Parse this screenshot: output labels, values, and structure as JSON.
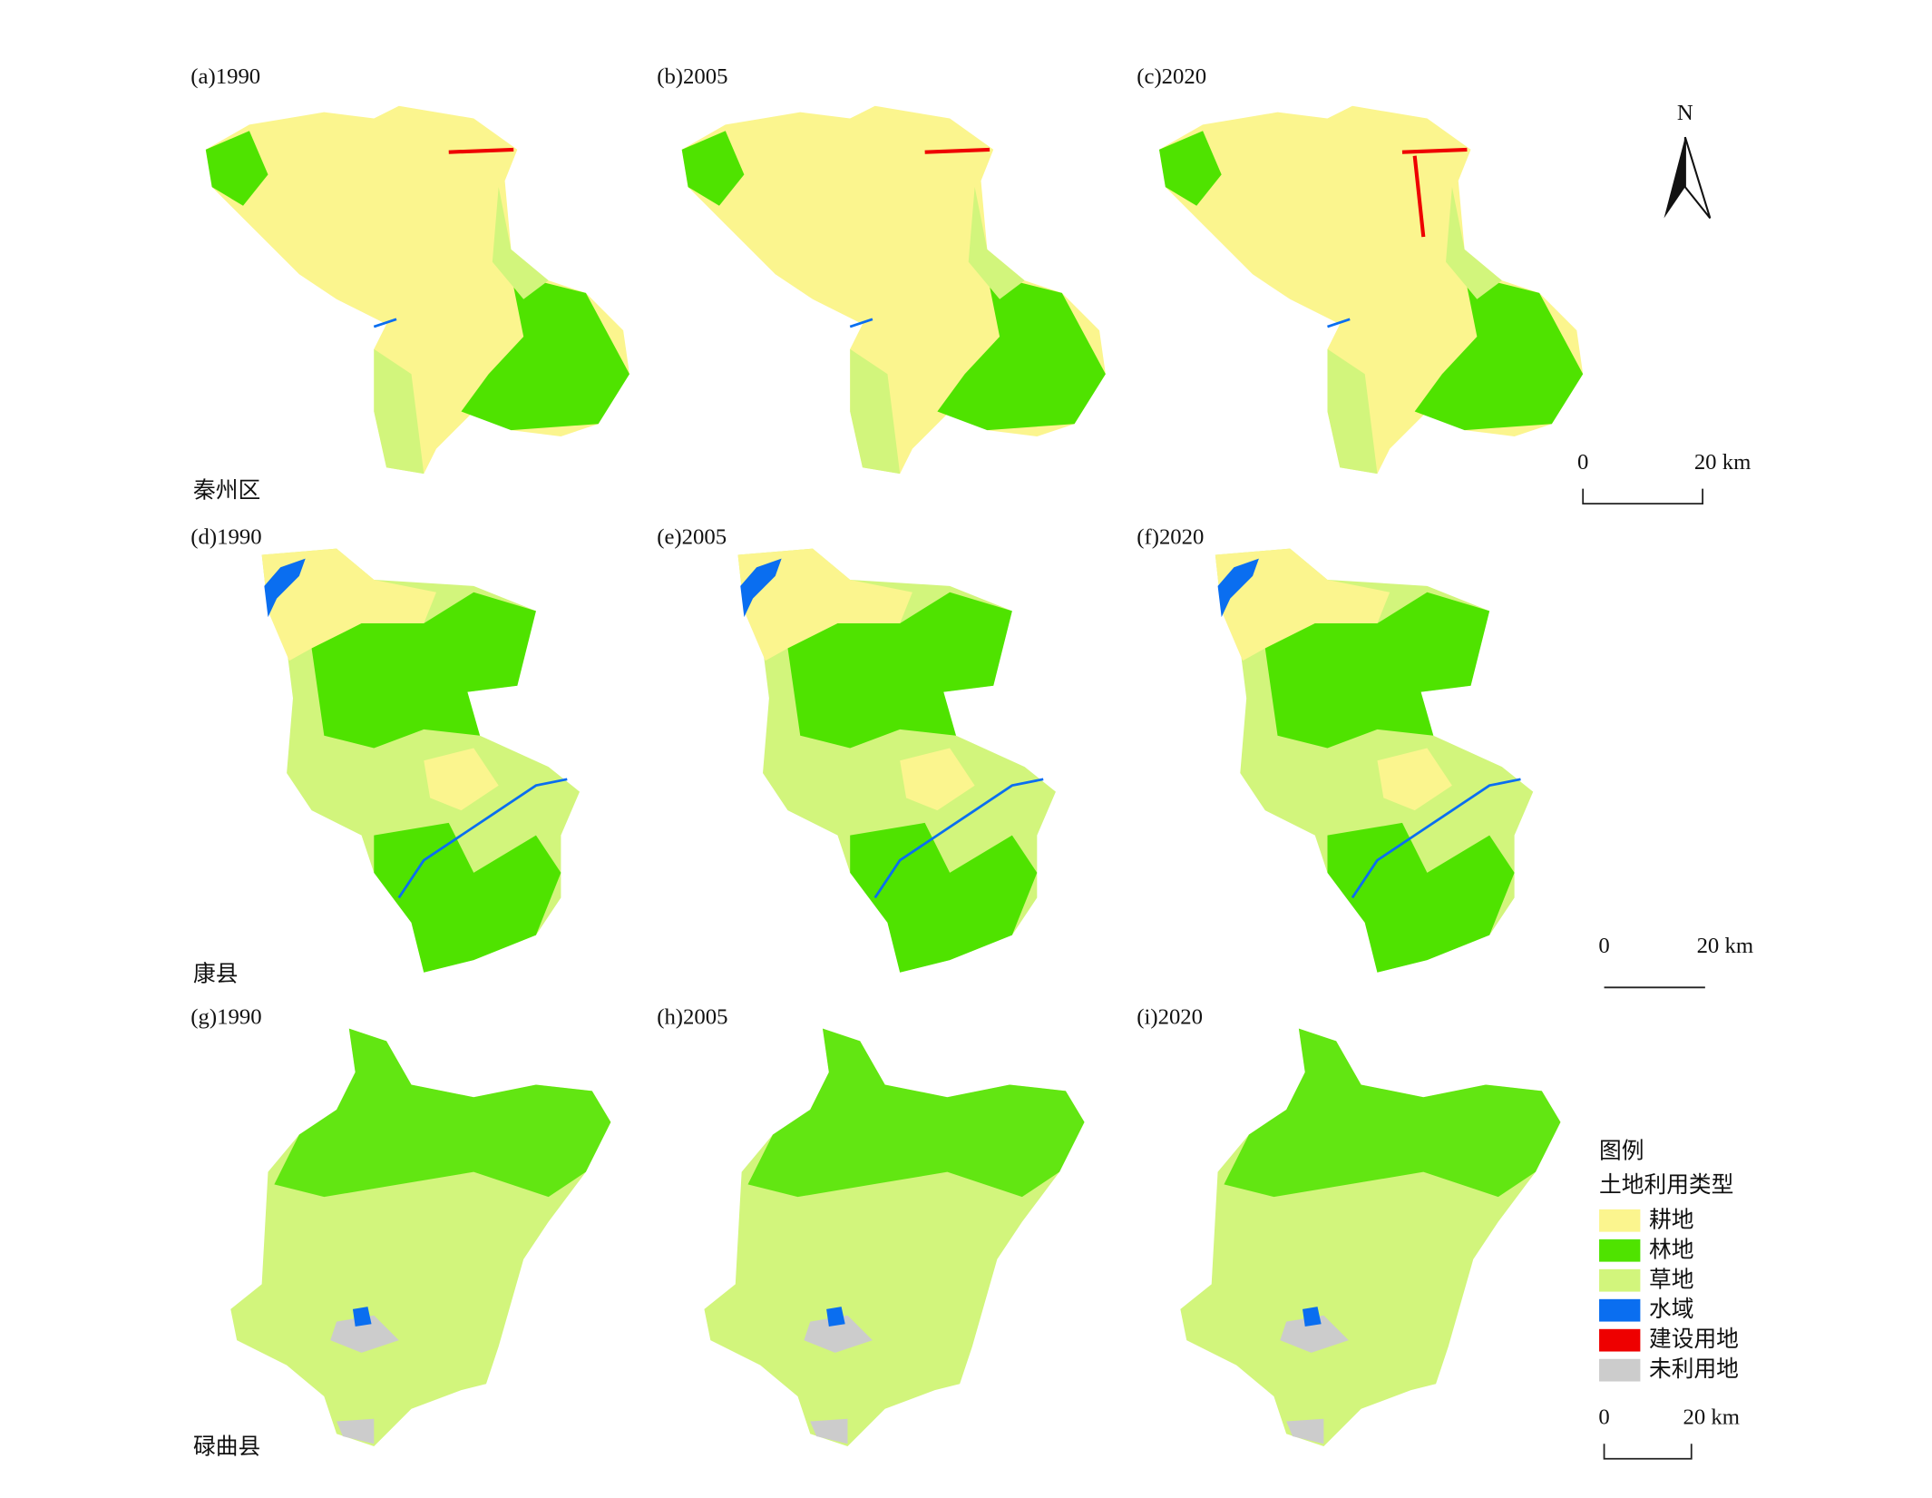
{
  "panels": [
    "(a)1990",
    "(b)2005",
    "(c)2020",
    "(d)1990",
    "(e)2005",
    "(f)2020",
    "(g)1990",
    "(h)2005",
    "(i)2020"
  ],
  "regions": [
    "秦州区",
    "康县",
    "碌曲县"
  ],
  "north": "N",
  "scale_bars": [
    {
      "start": "0",
      "end": "20 km"
    },
    {
      "start": "0",
      "end": "20 km"
    },
    {
      "start": "0",
      "end": "20 km"
    }
  ],
  "legend": {
    "title": "图例",
    "subtitle": "土地利用类型",
    "items": [
      {
        "label": "耕地",
        "color": "#fbf58e"
      },
      {
        "label": "林地",
        "color": "#4fe300"
      },
      {
        "label": "草地",
        "color": "#d2f57c"
      },
      {
        "label": "水域",
        "color": "#0a6ef0"
      },
      {
        "label": "建设用地",
        "color": "#ee0000"
      },
      {
        "label": "未利用地",
        "color": "#cccccc"
      }
    ]
  }
}
